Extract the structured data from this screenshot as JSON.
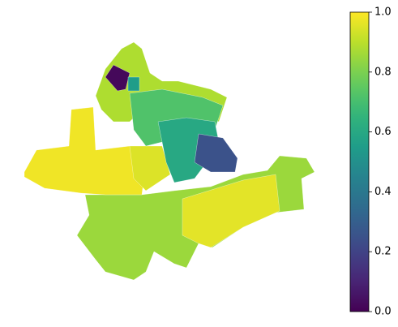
{
  "chart_data": {
    "type": "map",
    "values": [
      0.85,
      0.96,
      0.98,
      0.95,
      0.88,
      0.72,
      0.6,
      0.25,
      0.02,
      0.55
    ],
    "clim": [
      0,
      1
    ],
    "cticks": [
      {
        "value": 0,
        "label": "0.0"
      },
      {
        "value": 0.2,
        "label": "0.2"
      },
      {
        "value": 0.4,
        "label": "0.4"
      },
      {
        "value": 0.6,
        "label": "0.6"
      },
      {
        "value": 0.8,
        "label": "0.8"
      },
      {
        "value": 1,
        "label": "1.0"
      }
    ]
  }
}
